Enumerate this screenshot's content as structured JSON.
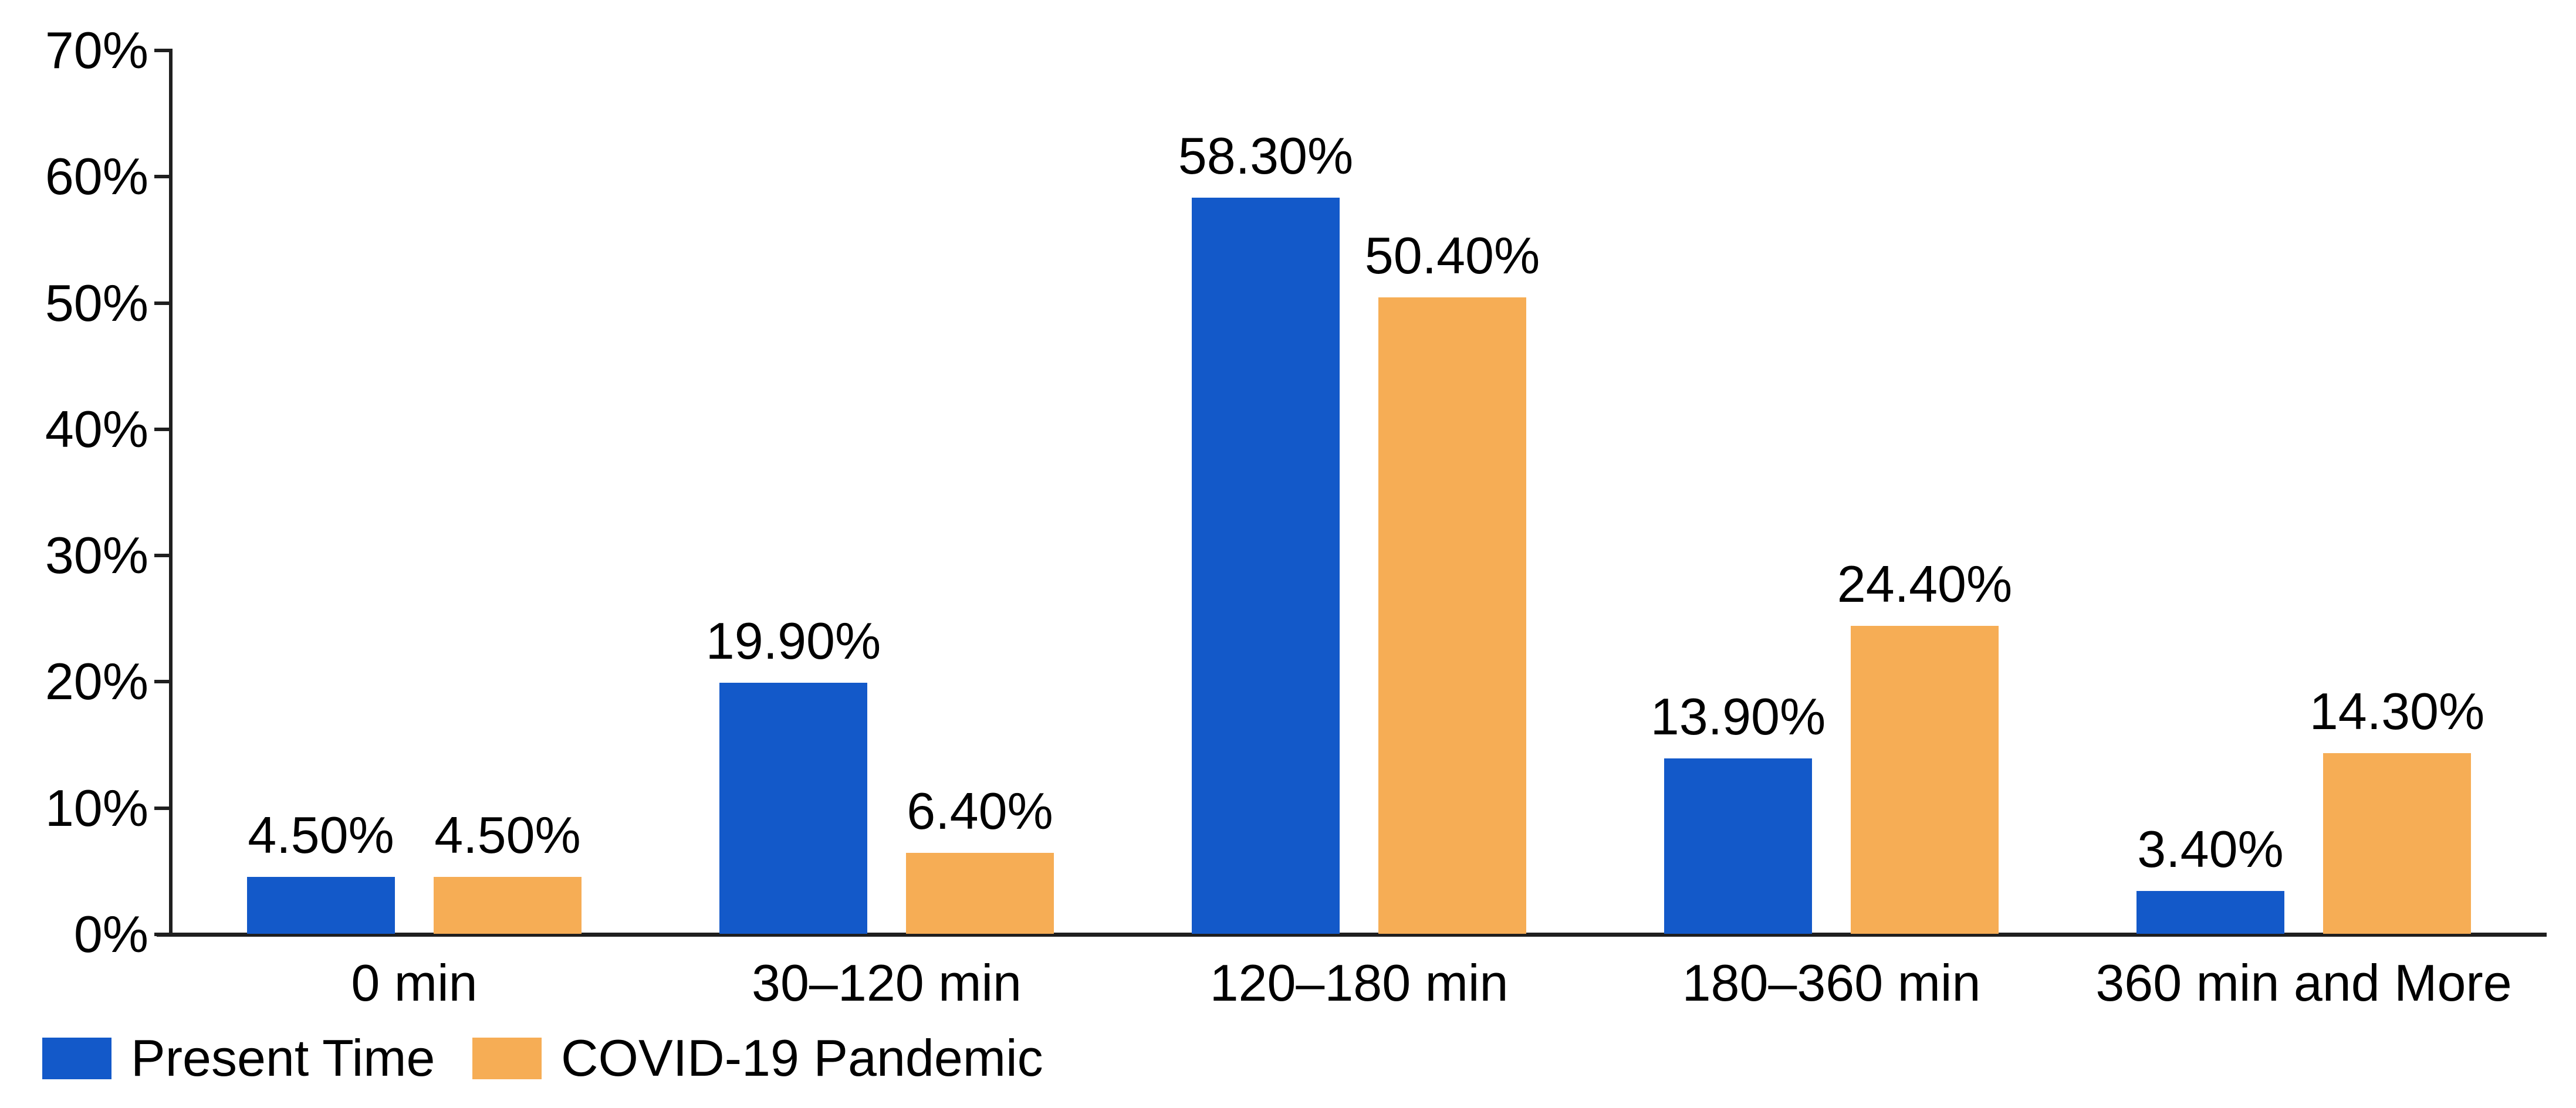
{
  "chart_data": {
    "type": "bar",
    "title": "",
    "xlabel": "",
    "ylabel": "",
    "categories": [
      "0 min",
      "30–120 min",
      "120–180 min",
      "180–360 min",
      "360 min and More"
    ],
    "series": [
      {
        "name": "Present Time",
        "color": "#1359c9",
        "values": [
          4.5,
          19.9,
          58.3,
          13.9,
          3.4
        ],
        "value_labels": [
          "4.50%",
          "19.90%",
          "58.30%",
          "13.90%",
          "3.40%"
        ]
      },
      {
        "name": "COVID-19 Pandemic",
        "color": "#f6ad55",
        "values": [
          4.5,
          6.4,
          50.4,
          24.4,
          14.3
        ],
        "value_labels": [
          "4.50%",
          "6.40%",
          "50.40%",
          "24.40%",
          "14.30%"
        ]
      }
    ],
    "ylim": [
      0,
      70
    ],
    "ytick_step": 10,
    "ytick_labels": [
      "0%",
      "10%",
      "20%",
      "30%",
      "40%",
      "50%",
      "60%",
      "70%"
    ],
    "grid": false,
    "legend_position": "bottom-left",
    "colors": {
      "axis": "#1f1f1f",
      "text": "#000000",
      "background": "#ffffff"
    }
  }
}
